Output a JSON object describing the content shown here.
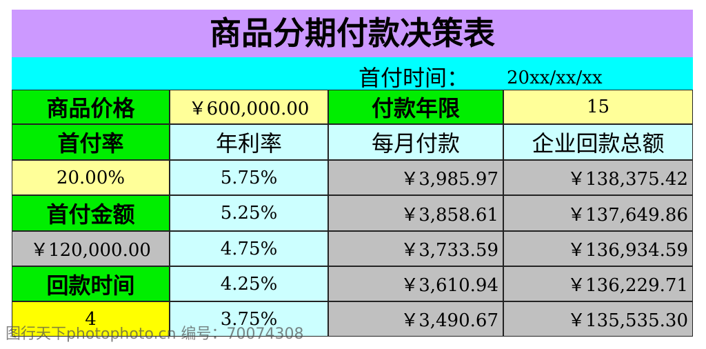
{
  "title": "商品分期付款决策表",
  "header": {
    "label": "首付时间：",
    "value": "20xx/xx/xx"
  },
  "table": {
    "rows": [
      [
        "商品价格",
        "￥600,000.00",
        "付款年限",
        "15"
      ],
      [
        "首付率",
        "年利率",
        "每月付款",
        "企业回款总额"
      ],
      [
        "20.00%",
        "5.75%",
        "￥3,985.97",
        "￥138,375.42"
      ],
      [
        "首付金额",
        "5.25%",
        "￥3,858.61",
        "￥137,649.86"
      ],
      [
        "￥120,000.00",
        "4.75%",
        "￥3,733.59",
        "￥136,934.59"
      ],
      [
        "回款时间",
        "4.25%",
        "￥3,610.94",
        "￥136,229.71"
      ],
      [
        "4",
        "3.75%",
        "￥3,490.67",
        "￥135,535.30"
      ]
    ]
  },
  "watermark": "图行天下photophoto.cn 编号：70074308"
}
